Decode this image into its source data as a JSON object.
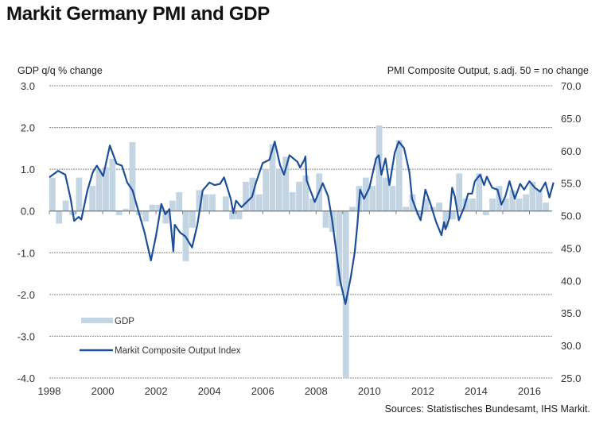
{
  "chart_data": {
    "type": "bar+line",
    "title": "Markit Germany PMI and GDP",
    "left_axis_label": "GDP q/q % change",
    "right_axis_label": "PMI Composite  Output, s.adj. 50 = no change",
    "left_ylim": [
      -4.0,
      3.0
    ],
    "left_ticks": [
      "3.0",
      "2.0",
      "1.0",
      "0.0",
      "-1.0",
      "-2.0",
      "-3.0",
      "-4.0"
    ],
    "right_ylim": [
      25.0,
      70.0
    ],
    "right_ticks": [
      "70.0",
      "65.0",
      "60.0",
      "55.0",
      "50.0",
      "45.0",
      "40.0",
      "35.0",
      "30.0",
      "25.0"
    ],
    "x_ticks": [
      "1998",
      "2000",
      "2002",
      "2004",
      "2006",
      "2008",
      "2010",
      "2012",
      "2014",
      "2016"
    ],
    "xlim": [
      1998,
      2016.85
    ],
    "grid": "horizontal dotted",
    "legend_placement": "bottom-left",
    "source": "Sources: Statistisches Bundesamt, IHS Markit.",
    "colors": {
      "gdp": "#c3d4e3",
      "pmi": "#1d4e9a",
      "grid": "#888888"
    },
    "series": [
      {
        "name": "GDP",
        "type": "bar",
        "axis": "left",
        "start_quarter": "1998Q1",
        "values": [
          0.8,
          -0.3,
          0.25,
          -0.1,
          0.8,
          0.0,
          0.6,
          1.0,
          1.05,
          1.25,
          -0.1,
          0.05,
          1.65,
          -0.1,
          -0.25,
          0.15,
          0.15,
          -0.3,
          0.25,
          0.45,
          -1.2,
          -0.4,
          0.5,
          0.4,
          0.4,
          0.0,
          0.35,
          -0.2,
          -0.2,
          0.7,
          0.8,
          0.4,
          1.0,
          1.6,
          1.0,
          1.3,
          0.45,
          0.7,
          0.85,
          0.3,
          0.9,
          -0.4,
          -0.5,
          -1.8,
          -4.5,
          0.1,
          0.6,
          0.8,
          0.6,
          2.05,
          0.8,
          0.6,
          1.7,
          0.1,
          0.4,
          -0.1,
          0.3,
          0.1,
          0.2,
          -0.4,
          -0.2,
          0.9,
          0.3,
          0.3,
          0.9,
          -0.1,
          0.3,
          0.6,
          0.3,
          0.5,
          0.3,
          0.4,
          0.7,
          0.5,
          0.2
        ]
      },
      {
        "name": "Markit Composite Output Index",
        "type": "line",
        "axis": "right",
        "points": [
          [
            1998.0,
            55.9
          ],
          [
            1998.33,
            56.9
          ],
          [
            1998.6,
            56.3
          ],
          [
            1998.8,
            52.6
          ],
          [
            1998.93,
            49.2
          ],
          [
            1999.1,
            49.8
          ],
          [
            1999.2,
            49.4
          ],
          [
            1999.43,
            53.9
          ],
          [
            1999.63,
            56.7
          ],
          [
            1999.78,
            57.7
          ],
          [
            2000.02,
            56.1
          ],
          [
            2000.27,
            60.8
          ],
          [
            2000.52,
            58.0
          ],
          [
            2000.72,
            57.7
          ],
          [
            2000.92,
            55.1
          ],
          [
            2001.12,
            53.9
          ],
          [
            2001.32,
            51.0
          ],
          [
            2001.57,
            47.4
          ],
          [
            2001.81,
            43.1
          ],
          [
            2002.0,
            46.9
          ],
          [
            2002.2,
            51.8
          ],
          [
            2002.35,
            50.2
          ],
          [
            2002.5,
            51.0
          ],
          [
            2002.65,
            44.5
          ],
          [
            2002.7,
            48.6
          ],
          [
            2002.9,
            47.4
          ],
          [
            2003.1,
            46.8
          ],
          [
            2003.35,
            45.1
          ],
          [
            2003.55,
            48.6
          ],
          [
            2003.75,
            53.9
          ],
          [
            2004.0,
            55.1
          ],
          [
            2004.2,
            54.7
          ],
          [
            2004.4,
            54.9
          ],
          [
            2004.55,
            55.9
          ],
          [
            2004.8,
            52.6
          ],
          [
            2004.9,
            50.4
          ],
          [
            2005.0,
            52.3
          ],
          [
            2005.2,
            51.3
          ],
          [
            2005.4,
            52.1
          ],
          [
            2005.6,
            52.9
          ],
          [
            2005.75,
            55.1
          ],
          [
            2006.0,
            58.1
          ],
          [
            2006.25,
            58.6
          ],
          [
            2006.45,
            61.4
          ],
          [
            2006.65,
            57.8
          ],
          [
            2006.8,
            56.3
          ],
          [
            2007.0,
            59.3
          ],
          [
            2007.3,
            58.3
          ],
          [
            2007.4,
            57.4
          ],
          [
            2007.55,
            58.5
          ],
          [
            2007.6,
            59.1
          ],
          [
            2007.65,
            55.4
          ],
          [
            2007.95,
            52.1
          ],
          [
            2008.25,
            55.0
          ],
          [
            2008.45,
            53.0
          ],
          [
            2008.6,
            49.4
          ],
          [
            2008.9,
            40.0
          ],
          [
            2009.1,
            36.4
          ],
          [
            2009.3,
            40.5
          ],
          [
            2009.45,
            44.4
          ],
          [
            2009.55,
            48.6
          ],
          [
            2009.65,
            54.0
          ],
          [
            2009.8,
            52.6
          ],
          [
            2010.0,
            54.3
          ],
          [
            2010.25,
            58.8
          ],
          [
            2010.35,
            59.3
          ],
          [
            2010.45,
            56.3
          ],
          [
            2010.6,
            58.8
          ],
          [
            2010.75,
            54.7
          ],
          [
            2010.95,
            59.7
          ],
          [
            2011.1,
            61.4
          ],
          [
            2011.3,
            60.4
          ],
          [
            2011.5,
            56.7
          ],
          [
            2011.6,
            52.6
          ],
          [
            2011.8,
            50.4
          ],
          [
            2011.92,
            49.3
          ],
          [
            2012.1,
            54.0
          ],
          [
            2012.3,
            51.7
          ],
          [
            2012.5,
            49.0
          ],
          [
            2012.7,
            47.0
          ],
          [
            2012.8,
            49.0
          ],
          [
            2012.85,
            47.9
          ],
          [
            2013.0,
            49.6
          ],
          [
            2013.1,
            54.3
          ],
          [
            2013.2,
            53.0
          ],
          [
            2013.35,
            49.3
          ],
          [
            2013.55,
            51.3
          ],
          [
            2013.7,
            53.4
          ],
          [
            2013.85,
            53.4
          ],
          [
            2013.95,
            55.3
          ],
          [
            2014.15,
            56.3
          ],
          [
            2014.3,
            54.7
          ],
          [
            2014.4,
            56.0
          ],
          [
            2014.6,
            54.3
          ],
          [
            2014.8,
            54.0
          ],
          [
            2014.95,
            51.7
          ],
          [
            2015.1,
            53.0
          ],
          [
            2015.25,
            55.3
          ],
          [
            2015.45,
            52.6
          ],
          [
            2015.65,
            54.9
          ],
          [
            2015.8,
            54.0
          ],
          [
            2016.0,
            55.3
          ],
          [
            2016.2,
            54.3
          ],
          [
            2016.4,
            53.7
          ],
          [
            2016.6,
            55.1
          ],
          [
            2016.75,
            52.8
          ],
          [
            2016.9,
            55.1
          ]
        ]
      }
    ]
  }
}
